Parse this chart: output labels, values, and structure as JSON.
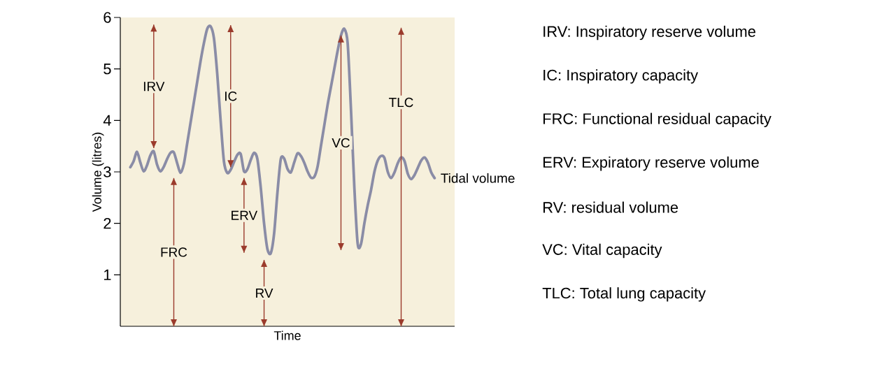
{
  "chart_data": {
    "type": "line",
    "xlabel": "Time",
    "ylabel": "Volume (litres)",
    "categories": [
      null,
      null,
      null,
      null,
      null,
      null,
      null,
      null,
      null,
      null,
      null,
      null,
      null,
      null,
      null,
      null,
      null,
      null,
      null,
      null,
      null,
      null,
      null,
      null,
      null,
      null,
      null,
      null,
      null,
      null,
      null,
      null,
      null,
      null,
      null,
      null,
      null,
      null,
      null,
      null,
      null,
      null,
      null,
      null,
      null,
      null,
      null,
      null,
      null,
      null,
      null,
      null,
      null,
      null,
      null,
      null,
      null,
      null,
      null,
      null,
      null,
      null,
      null,
      null,
      null,
      null,
      null,
      null,
      null,
      null,
      null,
      null,
      null,
      null,
      null,
      null,
      null,
      null,
      null,
      null,
      null,
      null,
      null,
      null,
      null,
      null,
      null,
      null,
      null,
      null,
      null,
      null,
      null,
      null,
      null,
      null,
      null,
      null,
      null,
      null,
      null
    ],
    "ylim": [
      0,
      6
    ],
    "yticks": [
      1,
      2,
      3,
      4,
      5,
      6
    ],
    "tick_labels": "y",
    "marker": "none",
    "series": [
      {
        "color": "#8a8ca6",
        "values": [
          null,
          null,
          null,
          3.09,
          3.21,
          3.39,
          3.18,
          3.01,
          3.13,
          3.32,
          3.4,
          3.14,
          3.01,
          3.1,
          3.25,
          3.37,
          3.38,
          3.17,
          2.98,
          3.15,
          3.55,
          3.95,
          4.35,
          4.75,
          5.15,
          5.5,
          5.78,
          5.83,
          5.6,
          4.9,
          4.0,
          3.2,
          2.98,
          3.04,
          3.19,
          3.33,
          3.35,
          3.01,
          3.05,
          3.23,
          3.37,
          3.25,
          2.7,
          2.0,
          1.5,
          1.42,
          1.8,
          2.6,
          3.25,
          3.26,
          3.06,
          2.99,
          3.18,
          3.36,
          3.31,
          3.18,
          3.01,
          2.89,
          2.9,
          3.1,
          3.5,
          3.9,
          4.3,
          4.65,
          5.0,
          5.35,
          5.65,
          5.78,
          5.5,
          4.2,
          2.7,
          1.6,
          1.6,
          2.0,
          2.35,
          2.65,
          3.0,
          3.22,
          3.31,
          3.27,
          3.0,
          2.88,
          2.99,
          3.17,
          3.28,
          3.21,
          2.96,
          2.86,
          2.94,
          3.08,
          3.22,
          3.28,
          3.18,
          2.99,
          2.88,
          null,
          null,
          null,
          null,
          null,
          null
        ]
      },
      {
        "type": "bar",
        "color": "#9b3b2c",
        "values": [
          null,
          null,
          null,
          null,
          null,
          null,
          null,
          null,
          null,
          null,
          2.4,
          null,
          null,
          null,
          null,
          null,
          2.88,
          null,
          null,
          null,
          null,
          null,
          null,
          null,
          null,
          null,
          null,
          null,
          null,
          null,
          null,
          null,
          null,
          2.76,
          null,
          null,
          null,
          1.45,
          null,
          null,
          null,
          null,
          null,
          1.29,
          null,
          null,
          null,
          null,
          null,
          null,
          null,
          null,
          null,
          null,
          null,
          null,
          null,
          null,
          null,
          null,
          null,
          null,
          null,
          null,
          null,
          null,
          4.17,
          null,
          null,
          null,
          null,
          null,
          null,
          null,
          null,
          null,
          null,
          null,
          null,
          null,
          null,
          null,
          null,
          null,
          5.8,
          null,
          null,
          null,
          null,
          null,
          null,
          null,
          null,
          null,
          null,
          null,
          null,
          null,
          null,
          null,
          null
        ],
        "base": [
          null,
          null,
          null,
          null,
          null,
          null,
          null,
          null,
          null,
          null,
          3.46,
          null,
          null,
          null,
          null,
          null,
          0,
          null,
          null,
          null,
          null,
          null,
          null,
          null,
          null,
          null,
          null,
          null,
          null,
          null,
          null,
          null,
          null,
          3.09,
          null,
          null,
          null,
          1.43,
          null,
          null,
          null,
          null,
          null,
          0,
          null,
          null,
          null,
          null,
          null,
          null,
          null,
          null,
          null,
          null,
          null,
          null,
          null,
          null,
          null,
          null,
          null,
          null,
          null,
          null,
          null,
          null,
          1.48,
          null,
          null,
          null,
          null,
          null,
          null,
          null,
          null,
          null,
          null,
          null,
          null,
          null,
          null,
          null,
          null,
          null,
          0,
          null,
          null,
          null,
          null,
          null,
          null,
          null,
          null,
          null,
          null,
          null,
          null,
          null,
          null,
          null,
          null
        ],
        "value_labels": [
          null,
          null,
          null,
          null,
          null,
          null,
          null,
          null,
          null,
          null,
          "IRV",
          null,
          null,
          null,
          null,
          null,
          "FRC",
          null,
          null,
          null,
          null,
          null,
          null,
          null,
          null,
          null,
          null,
          null,
          null,
          null,
          null,
          null,
          null,
          "IC",
          null,
          null,
          null,
          "ERV",
          null,
          null,
          null,
          null,
          null,
          "RV",
          null,
          null,
          null,
          null,
          null,
          null,
          null,
          null,
          null,
          null,
          null,
          null,
          null,
          null,
          null,
          null,
          null,
          null,
          null,
          null,
          null,
          null,
          "VC",
          null,
          null,
          null,
          null,
          null,
          null,
          null,
          null,
          null,
          null,
          null,
          null,
          null,
          null,
          null,
          null,
          null,
          "TLC",
          null,
          null,
          null,
          null,
          null,
          null,
          null,
          null,
          null,
          null,
          null,
          null,
          null,
          null,
          null,
          null
        ]
      }
    ],
    "annotations": [
      "Tidal volume",
      "IRV: Inspiratory reserve volume",
      "IC: Inspiratory capacity",
      "FRC: Functional residual capacity",
      "ERV: Expiratory reserve volume",
      "RV: residual volume",
      "VC: Vital capacity",
      "TLC: Total lung capacity"
    ]
  }
}
